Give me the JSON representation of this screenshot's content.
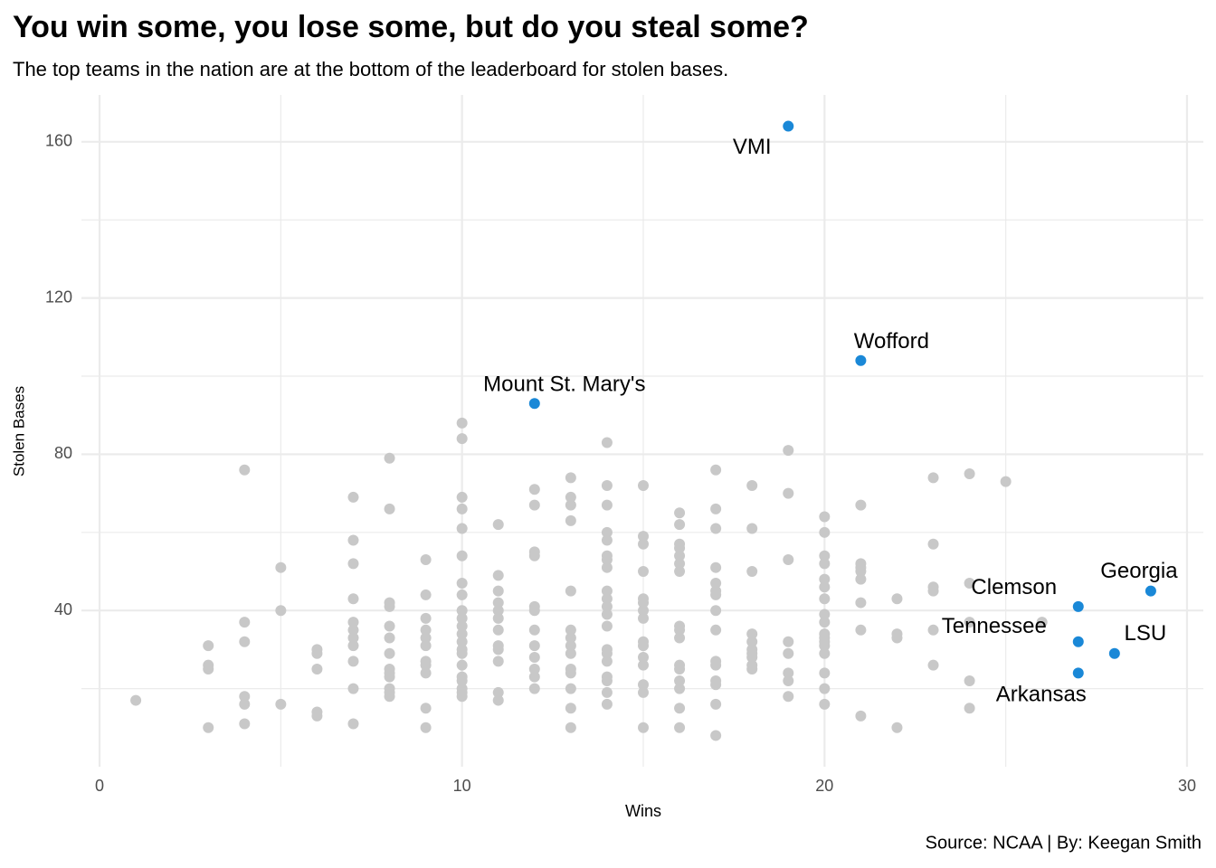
{
  "chart_data": {
    "type": "scatter",
    "title": "You win some, you lose some, but do you steal some?",
    "subtitle": "The top teams in the nation are at the bottom of the leaderboard for stolen bases.",
    "x_label": "Wins",
    "y_label": "Stolen Bases",
    "caption": "Source: NCAA | By: Keegan Smith",
    "xlim": [
      -0.5,
      30.45
    ],
    "ylim": [
      0,
      172
    ],
    "xticks": [
      0,
      10,
      20,
      30
    ],
    "yticks": [
      40,
      80,
      120,
      160
    ],
    "minor_xticks": [
      5,
      15,
      25
    ],
    "minor_yticks": [
      20,
      60,
      100,
      140
    ],
    "grid": true,
    "series": [
      {
        "color": "#c8c8c8",
        "x": [
          1,
          3,
          3,
          3,
          3,
          4,
          4,
          4,
          4,
          4,
          4,
          5,
          5,
          5,
          6,
          6,
          6,
          6,
          6,
          7,
          7,
          7,
          7,
          7,
          7,
          7,
          7,
          7,
          7,
          7,
          8,
          8,
          8,
          8,
          8,
          8,
          8,
          8,
          8,
          8,
          8,
          8,
          8,
          9,
          9,
          9,
          9,
          9,
          9,
          9,
          9,
          9,
          9,
          9,
          10,
          10,
          10,
          10,
          10,
          10,
          10,
          10,
          10,
          10,
          10,
          10,
          10,
          10,
          10,
          10,
          10,
          10,
          10,
          10,
          10,
          11,
          11,
          11,
          11,
          11,
          11,
          11,
          11,
          11,
          11,
          11,
          11,
          12,
          12,
          12,
          12,
          12,
          12,
          12,
          12,
          12,
          12,
          12,
          12,
          13,
          13,
          13,
          13,
          13,
          13,
          13,
          13,
          13,
          13,
          13,
          13,
          13,
          13,
          14,
          14,
          14,
          14,
          14,
          14,
          14,
          14,
          14,
          14,
          14,
          14,
          14,
          14,
          14,
          14,
          14,
          14,
          14,
          14,
          15,
          15,
          15,
          15,
          15,
          15,
          15,
          15,
          15,
          15,
          15,
          15,
          15,
          15,
          15,
          16,
          16,
          16,
          16,
          16,
          16,
          16,
          16,
          16,
          16,
          16,
          16,
          16,
          16,
          16,
          16,
          17,
          17,
          17,
          17,
          17,
          17,
          17,
          17,
          17,
          17,
          17,
          17,
          17,
          17,
          17,
          18,
          18,
          18,
          18,
          18,
          18,
          18,
          18,
          18,
          18,
          19,
          19,
          19,
          19,
          19,
          19,
          19,
          19,
          20,
          20,
          20,
          20,
          20,
          20,
          20,
          20,
          20,
          20,
          20,
          20,
          20,
          20,
          20,
          20,
          20,
          21,
          21,
          21,
          21,
          21,
          21,
          21,
          21,
          22,
          22,
          22,
          22,
          23,
          23,
          23,
          23,
          23,
          23,
          24,
          24,
          24,
          24,
          24,
          25,
          26
        ],
        "values": [
          17,
          31,
          26,
          25,
          10,
          76,
          37,
          32,
          18,
          16,
          11,
          51,
          40,
          16,
          30,
          29,
          25,
          14,
          13,
          69,
          58,
          52,
          43,
          37,
          35,
          33,
          31,
          27,
          20,
          11,
          79,
          66,
          42,
          41,
          36,
          33,
          29,
          25,
          23,
          20,
          19,
          18,
          24,
          53,
          44,
          38,
          35,
          33,
          31,
          27,
          26,
          24,
          15,
          10,
          88,
          84,
          69,
          66,
          61,
          54,
          47,
          44,
          40,
          38,
          36,
          34,
          32,
          30,
          29,
          26,
          23,
          22,
          20,
          19,
          18,
          62,
          49,
          45,
          42,
          40,
          38,
          35,
          31,
          30,
          27,
          19,
          17,
          71,
          67,
          55,
          54,
          41,
          40,
          35,
          31,
          28,
          25,
          23,
          20,
          74,
          69,
          67,
          63,
          45,
          35,
          33,
          31,
          29,
          25,
          24,
          20,
          15,
          10,
          83,
          72,
          67,
          60,
          58,
          54,
          53,
          51,
          45,
          43,
          41,
          39,
          36,
          30,
          29,
          27,
          23,
          22,
          19,
          16,
          72,
          59,
          57,
          50,
          43,
          42,
          40,
          38,
          32,
          31,
          28,
          26,
          21,
          19,
          10,
          65,
          62,
          57,
          56,
          54,
          52,
          50,
          36,
          35,
          33,
          26,
          25,
          22,
          20,
          15,
          10,
          76,
          66,
          61,
          51,
          47,
          45,
          44,
          40,
          35,
          27,
          26,
          22,
          21,
          16,
          8,
          72,
          61,
          50,
          34,
          32,
          30,
          29,
          28,
          26,
          25,
          81,
          70,
          53,
          32,
          29,
          24,
          22,
          18,
          64,
          60,
          54,
          52,
          48,
          46,
          43,
          39,
          37,
          34,
          33,
          32,
          31,
          29,
          24,
          20,
          16,
          67,
          52,
          51,
          50,
          48,
          42,
          35,
          13,
          43,
          34,
          33,
          10,
          74,
          57,
          46,
          45,
          35,
          26,
          75,
          47,
          37,
          22,
          15,
          73,
          37
        ]
      },
      {
        "color": "#1a88d7",
        "x": [
          19,
          21,
          12,
          29,
          27,
          27,
          28,
          27
        ],
        "values": [
          164,
          104,
          93,
          45,
          41,
          32,
          29,
          24
        ],
        "labels": [
          "VMI",
          "Wofford",
          "Mount St. Mary's",
          "Georgia",
          "Clemson",
          "Tennessee",
          "LSU",
          "Arkansas"
        ]
      }
    ]
  }
}
